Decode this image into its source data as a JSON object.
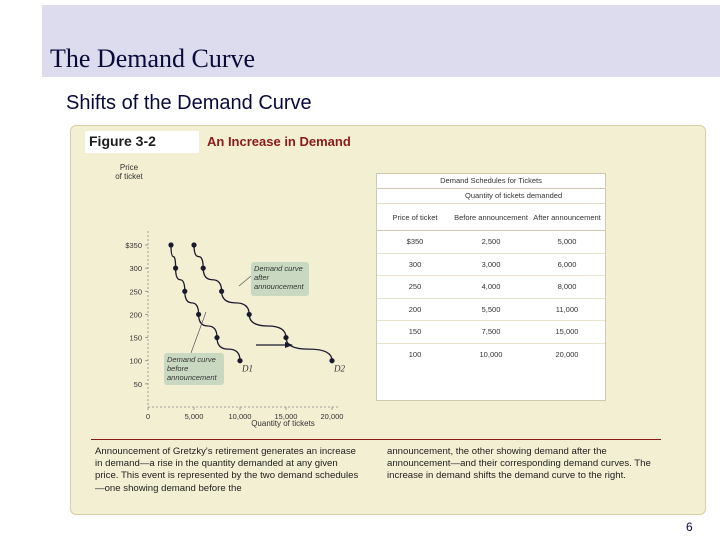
{
  "slide": {
    "title": "The Demand Curve",
    "subtitle": "Shifts of the Demand Curve",
    "page_number": "6"
  },
  "figure": {
    "number": "Figure 3-2",
    "caption": "An Increase in Demand",
    "caption_text_left": "Announcement of Gretzky's retirement generates an increase in demand—a rise in the quantity demanded at any given price. This event is represented by the two demand schedules—one showing demand before the",
    "caption_text_right": "announcement, the other showing demand after the announcement—and their corresponding demand curves. The increase in demand shifts the demand curve to the right."
  },
  "chart_data": {
    "type": "line",
    "ylabel": "Price of ticket",
    "xlabel": "Quantity of tickets",
    "x_tick_labels": [
      "0",
      "5,000",
      "10,000",
      "15,000",
      "20,000"
    ],
    "x_ticks": [
      0,
      5000,
      10000,
      15000,
      20000
    ],
    "y_tick_labels": [
      "$350",
      "300",
      "250",
      "200",
      "150",
      "100",
      "50"
    ],
    "y_ticks": [
      350,
      300,
      250,
      200,
      150,
      100,
      50
    ],
    "xlim": [
      0,
      20000
    ],
    "ylim": [
      0,
      350
    ],
    "series": [
      {
        "label": "D1",
        "annotation": "Demand curve before announcement",
        "x": [
          2500,
          3000,
          4000,
          5500,
          7500,
          10000
        ],
        "y": [
          350,
          300,
          250,
          200,
          150,
          100
        ]
      },
      {
        "label": "D2",
        "annotation": "Demand curve after announcement",
        "x": [
          5000,
          6000,
          8000,
          11000,
          15000,
          20000
        ],
        "y": [
          350,
          300,
          250,
          200,
          150,
          100
        ]
      }
    ],
    "colors": {
      "curve": "#1a1a2e",
      "annotation_fill": "#c9d8c0",
      "panel_bg": "#f3efd3"
    }
  },
  "table": {
    "title": "Demand Schedules for Tickets",
    "subtitle": "Quantity of tickets demanded",
    "headers": [
      "Price of ticket",
      "Before announcement",
      "After announcement"
    ],
    "rows": [
      [
        "$350",
        "2,500",
        "5,000"
      ],
      [
        "300",
        "3,000",
        "6,000"
      ],
      [
        "250",
        "4,000",
        "8,000"
      ],
      [
        "200",
        "5,500",
        "11,000"
      ],
      [
        "150",
        "7,500",
        "15,000"
      ],
      [
        "100",
        "10,000",
        "20,000"
      ]
    ]
  }
}
